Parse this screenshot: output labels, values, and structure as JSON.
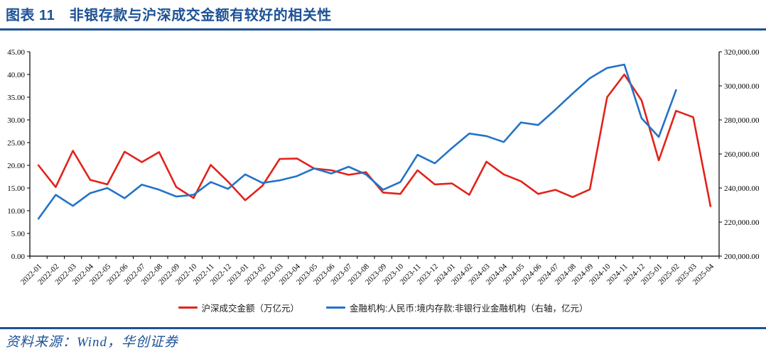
{
  "header": {
    "title": "图表 11　非银存款与沪深成交金额有较好的相关性"
  },
  "footer": {
    "source": "资料来源：Wind，华创证券"
  },
  "colors": {
    "accent_navy": "#1D5296",
    "series_red": "#E2231A",
    "series_blue": "#2373C8",
    "axis_black": "#000000"
  },
  "chart_data": {
    "type": "line",
    "title": "",
    "xlabel": "",
    "ylabel_left": "",
    "ylabel_right": "",
    "grid": false,
    "legend_position": "bottom",
    "categories": [
      "2022-01",
      "2022-02",
      "2022-03",
      "2022-04",
      "2022-05",
      "2022-06",
      "2022-07",
      "2022-08",
      "2022-09",
      "2022-10",
      "2022-11",
      "2022-12",
      "2023-01",
      "2023-02",
      "2023-03",
      "2023-04",
      "2023-05",
      "2023-06",
      "2023-07",
      "2023-08",
      "2023-09",
      "2023-10",
      "2023-11",
      "2023-12",
      "2024-01",
      "2024-02",
      "2024-03",
      "2024-04",
      "2024-05",
      "2024-06",
      "2024-07",
      "2024-08",
      "2024-09",
      "2024-10",
      "2024-11",
      "2024-12",
      "2025-01",
      "2025-02",
      "2025-03",
      "2025-04"
    ],
    "series": [
      {
        "name": "沪深成交金额（万亿元）",
        "axis": "left",
        "color": "#E2231A",
        "values": [
          20.0,
          15.2,
          23.2,
          16.8,
          15.8,
          23.0,
          20.7,
          22.9,
          15.2,
          12.8,
          20.1,
          16.4,
          12.3,
          15.5,
          21.4,
          21.5,
          19.3,
          18.9,
          17.9,
          18.5,
          14.0,
          13.7,
          18.9,
          15.8,
          16.0,
          13.5,
          20.8,
          18.0,
          16.5,
          13.7,
          14.6,
          13.0,
          14.7,
          35.0,
          40.0,
          34.3,
          21.1,
          32.0,
          30.6,
          11.0
        ]
      },
      {
        "name": "金融机构:人民币:境内存款:非银行业金融机构（右轴，亿元）",
        "axis": "right",
        "color": "#2373C8",
        "values": [
          222000,
          236000,
          229500,
          237000,
          240000,
          234000,
          242000,
          239000,
          235000,
          236000,
          243500,
          239500,
          248000,
          243000,
          244500,
          247000,
          251500,
          248500,
          252500,
          248000,
          239000,
          243500,
          259500,
          254500,
          263500,
          272000,
          270500,
          267000,
          278500,
          277000,
          286000,
          295500,
          304500,
          310500,
          312500,
          281000,
          270000,
          297500,
          null,
          null
        ]
      }
    ],
    "left_axis": {
      "min": 0,
      "max": 45,
      "step": 5,
      "tick_labels": [
        "0.00",
        "5.00",
        "10.00",
        "15.00",
        "20.00",
        "25.00",
        "30.00",
        "35.00",
        "40.00",
        "45.00"
      ]
    },
    "right_axis": {
      "min": 200000,
      "max": 320000,
      "step": 20000,
      "tick_labels": [
        "200,000.00",
        "220,000.00",
        "240,000.00",
        "260,000.00",
        "280,000.00",
        "300,000.00",
        "320,000.00"
      ]
    }
  }
}
